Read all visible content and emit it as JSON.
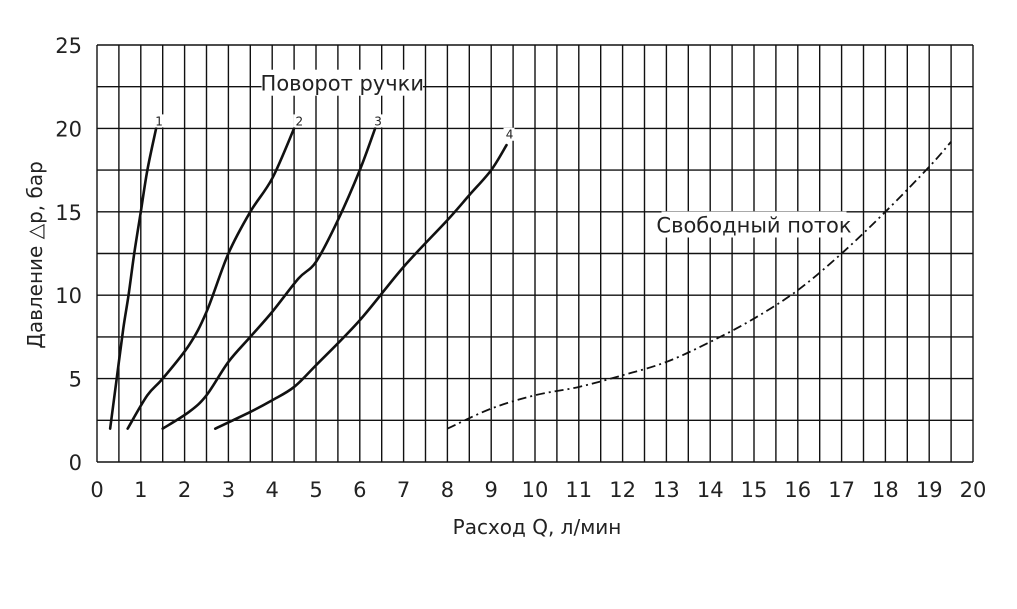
{
  "chart_data": {
    "type": "line",
    "title": "",
    "xlabel": "Расход Q, л/мин",
    "ylabel": "Давление △p, бар",
    "xlim": [
      0,
      20
    ],
    "ylim": [
      0,
      25
    ],
    "x_ticks": [
      0,
      1,
      2,
      3,
      4,
      5,
      6,
      7,
      8,
      9,
      10,
      11,
      12,
      13,
      14,
      15,
      16,
      17,
      18,
      19,
      20
    ],
    "y_ticks": [
      0,
      5,
      10,
      15,
      20,
      25
    ],
    "grid": true,
    "x_grid_step": 0.5,
    "y_grid_step": 2.5,
    "annotations": [
      {
        "id": "handle_turn",
        "text": "Поворот ручки",
        "x": 5.6,
        "y": 22.5
      },
      {
        "id": "free_flow",
        "text": "Свободный поток",
        "x": 15.0,
        "y": 14.0
      }
    ],
    "series": [
      {
        "name": "1",
        "style": "solid",
        "points": [
          [
            0.3,
            2
          ],
          [
            0.45,
            5
          ],
          [
            0.6,
            8
          ],
          [
            0.72,
            10
          ],
          [
            0.85,
            12.5
          ],
          [
            1.0,
            15
          ],
          [
            1.15,
            17.5
          ],
          [
            1.35,
            20
          ]
        ]
      },
      {
        "name": "2",
        "style": "solid",
        "points": [
          [
            0.7,
            2
          ],
          [
            1.15,
            4
          ],
          [
            1.5,
            5
          ],
          [
            2.1,
            7
          ],
          [
            2.5,
            9
          ],
          [
            3.0,
            12.5
          ],
          [
            3.5,
            15
          ],
          [
            4.0,
            17
          ],
          [
            4.5,
            20
          ]
        ]
      },
      {
        "name": "3",
        "style": "solid",
        "points": [
          [
            1.5,
            2
          ],
          [
            2.1,
            3
          ],
          [
            2.5,
            4
          ],
          [
            3.0,
            6
          ],
          [
            3.5,
            7.5
          ],
          [
            4.0,
            9
          ],
          [
            4.6,
            11
          ],
          [
            5.0,
            12
          ],
          [
            5.5,
            14.5
          ],
          [
            6.0,
            17.5
          ],
          [
            6.35,
            20
          ]
        ]
      },
      {
        "name": "4",
        "style": "solid",
        "points": [
          [
            2.7,
            2
          ],
          [
            3.5,
            3
          ],
          [
            4.0,
            3.7
          ],
          [
            4.5,
            4.5
          ],
          [
            5.0,
            5.8
          ],
          [
            6.0,
            8.5
          ],
          [
            7.0,
            11.7
          ],
          [
            8.0,
            14.5
          ],
          [
            8.5,
            16
          ],
          [
            9.0,
            17.5
          ],
          [
            9.35,
            19
          ]
        ]
      },
      {
        "name": "",
        "style": "dash-dot",
        "points": [
          [
            8.0,
            2
          ],
          [
            9.0,
            3.2
          ],
          [
            10.0,
            4
          ],
          [
            11.0,
            4.5
          ],
          [
            12.0,
            5.2
          ],
          [
            13.0,
            6
          ],
          [
            14.0,
            7.2
          ],
          [
            15.0,
            8.6
          ],
          [
            16.0,
            10.3
          ],
          [
            17.0,
            12.5
          ],
          [
            18.0,
            15
          ],
          [
            19.0,
            17.7
          ],
          [
            19.5,
            19.2
          ]
        ]
      }
    ],
    "curve_labels": [
      {
        "text": "1",
        "x": 1.35,
        "y": 20
      },
      {
        "text": "2",
        "x": 4.55,
        "y": 20
      },
      {
        "text": "3",
        "x": 6.35,
        "y": 20
      },
      {
        "text": "4",
        "x": 9.35,
        "y": 19.2
      }
    ]
  }
}
